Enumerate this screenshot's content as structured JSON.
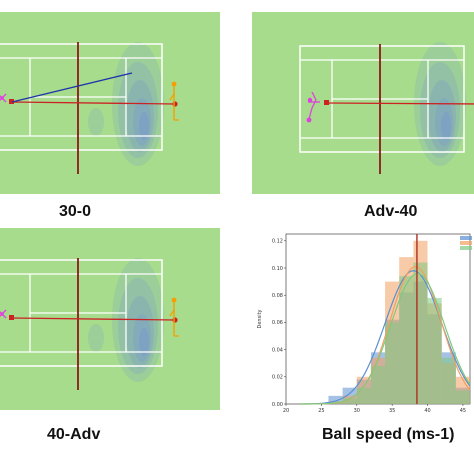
{
  "panels": [
    {
      "label": "30-0",
      "show_trajectory": true
    },
    {
      "label": "Adv-40",
      "show_trajectory": false
    },
    {
      "label": "40-Adv",
      "show_trajectory": false
    }
  ],
  "colors": {
    "field_green": "#a6dc8c",
    "court_line": "#ffffff",
    "net_line": "#8b1a1a",
    "shot_line": "#cc2222",
    "trajectory_line": "#2233aa",
    "player_left": "#e040e0",
    "player_right": "#f5a000",
    "heat_fill": "#6f8fd6",
    "hist_blue": "#5b8fd0",
    "hist_orange": "#f0a060",
    "hist_green": "#7fc97f",
    "vline": "#b03020"
  },
  "icons": {
    "player_left": "tennis-player-magenta",
    "player_right": "tennis-player-orange"
  },
  "chart_data": {
    "type": "histogram",
    "title": "Ball speed (ms-1)",
    "xlabel": "",
    "ylabel": "Density",
    "xlim": [
      20,
      46
    ],
    "ylim": [
      0,
      0.125
    ],
    "xticks": [
      "20",
      "25",
      "30",
      "35",
      "40",
      "45"
    ],
    "yticks": [
      "0.00",
      "0.02",
      "0.04",
      "0.06",
      "0.08",
      "0.10",
      "0.12"
    ],
    "vline_x": 38.5,
    "bins": [
      26,
      28,
      30,
      32,
      34,
      36,
      38,
      40,
      42,
      44,
      46
    ],
    "series": [
      {
        "color": "#5b8fd0",
        "values": [
          0.006,
          0.012,
          0.018,
          0.038,
          0.062,
          0.082,
          0.09,
          0.066,
          0.038,
          0.012
        ],
        "kde": {
          "mu": 38.0,
          "sigma": 4.0,
          "peak": 0.098
        }
      },
      {
        "color": "#f0a060",
        "values": [
          0.002,
          0.006,
          0.02,
          0.034,
          0.09,
          0.108,
          0.12,
          0.074,
          0.03,
          0.02
        ],
        "kde": {
          "mu": 38.3,
          "sigma": 3.6,
          "peak": 0.101
        }
      },
      {
        "color": "#7fc97f",
        "values": [
          0.001,
          0.004,
          0.012,
          0.028,
          0.06,
          0.094,
          0.104,
          0.078,
          0.034,
          0.01
        ],
        "kde": {
          "mu": 38.6,
          "sigma": 3.8,
          "peak": 0.096
        }
      }
    ]
  }
}
